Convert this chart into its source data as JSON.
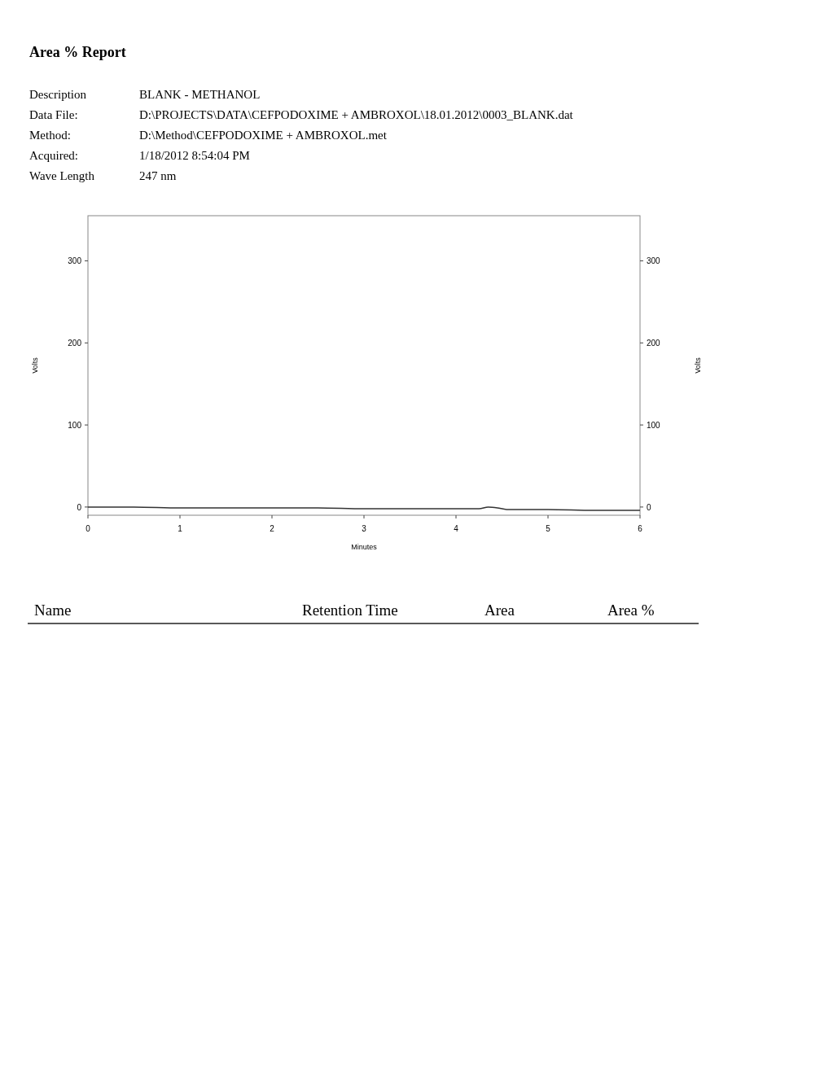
{
  "chart_data": {
    "type": "line",
    "title": "Area % Report",
    "xlabel": "Minutes",
    "ylabel": "Volts",
    "y2label": "Volts",
    "annotations": [
      "Description",
      "BLANK - METHANOL",
      "Data File:",
      "D:\\PROJECTS\\DATA\\CEFPODOXIME + AMBROXOL\\18.01.2012\\0003_BLANK.dat",
      "Method:",
      "D:\\Method\\CEFPODOXIME + AMBROXOL.met",
      "Acquired:",
      "1/18/2012 8:54:04 PM",
      "Wave Length",
      "247 nm",
      "Name",
      "Retention Time",
      "Area",
      "Area %"
    ],
    "x": [
      0,
      0.5,
      1,
      1.5,
      2,
      2.5,
      3,
      3.5,
      4,
      4.25,
      4.35,
      4.45,
      4.55,
      4.7,
      5,
      5.5,
      6
    ],
    "series": [
      {
        "color": "#333333",
        "values": [
          0,
          0,
          -1,
          -1,
          -1,
          -1,
          -2,
          -2,
          -2,
          -2,
          0,
          -1,
          -3,
          -3,
          -3,
          -4,
          -4
        ]
      }
    ],
    "xlim": [
      0,
      6
    ],
    "xticks": [
      0,
      1,
      2,
      3,
      4,
      5,
      6
    ],
    "ylim": [
      -10,
      355
    ],
    "yticks": [
      0,
      100,
      200,
      300
    ],
    "y2lim": [
      -10,
      355
    ],
    "y2ticks": [
      0,
      100,
      200,
      300
    ]
  }
}
